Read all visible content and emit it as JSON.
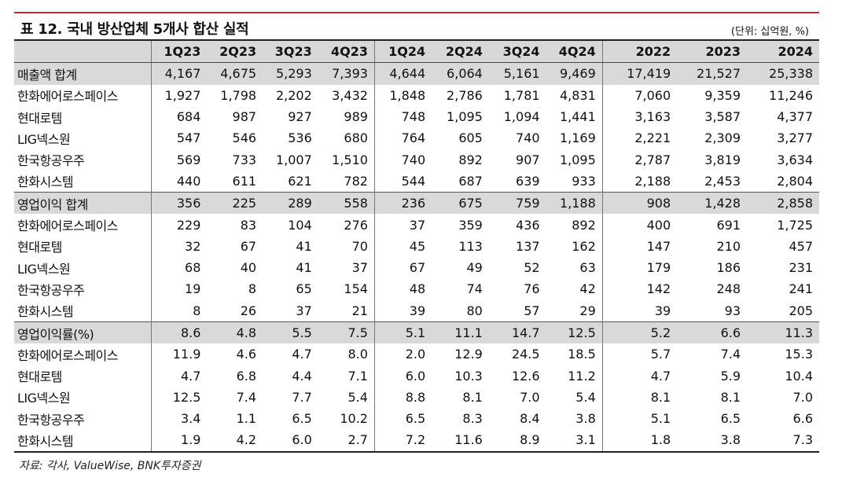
{
  "title": "표 12. 국내 방산업체 5개사 합산 실적",
  "unit": "(단위: 십억원, %)",
  "columns": [
    "1Q23",
    "2Q23",
    "3Q23",
    "4Q23",
    "1Q24",
    "2Q24",
    "3Q24",
    "4Q24",
    "2022",
    "2023",
    "2024"
  ],
  "rows": [
    {
      "name": "매출액 합계",
      "values": [
        "4,167",
        "4,675",
        "5,293",
        "7,393",
        "4,644",
        "6,064",
        "5,161",
        "9,469",
        "17,419",
        "21,527",
        "25,338"
      ],
      "total": true
    },
    {
      "name": "한화에어로스페이스",
      "values": [
        "1,927",
        "1,798",
        "2,202",
        "3,432",
        "1,848",
        "2,786",
        "1,781",
        "4,831",
        "7,060",
        "9,359",
        "11,246"
      ]
    },
    {
      "name": "현대로템",
      "values": [
        "684",
        "987",
        "927",
        "989",
        "748",
        "1,095",
        "1,094",
        "1,441",
        "3,163",
        "3,587",
        "4,377"
      ]
    },
    {
      "name": "LIG넥스원",
      "values": [
        "547",
        "546",
        "536",
        "680",
        "764",
        "605",
        "740",
        "1,169",
        "2,221",
        "2,309",
        "3,277"
      ]
    },
    {
      "name": "한국항공우주",
      "values": [
        "569",
        "733",
        "1,007",
        "1,510",
        "740",
        "892",
        "907",
        "1,095",
        "2,787",
        "3,819",
        "3,634"
      ]
    },
    {
      "name": "한화시스템",
      "values": [
        "440",
        "611",
        "621",
        "782",
        "544",
        "687",
        "639",
        "933",
        "2,188",
        "2,453",
        "2,804"
      ]
    },
    {
      "name": "영업이익 합계",
      "values": [
        "356",
        "225",
        "289",
        "558",
        "236",
        "675",
        "759",
        "1,188",
        "908",
        "1,428",
        "2,858"
      ],
      "total": true
    },
    {
      "name": "한화에어로스페이스",
      "values": [
        "229",
        "83",
        "104",
        "276",
        "37",
        "359",
        "436",
        "892",
        "400",
        "691",
        "1,725"
      ]
    },
    {
      "name": "현대로템",
      "values": [
        "32",
        "67",
        "41",
        "70",
        "45",
        "113",
        "137",
        "162",
        "147",
        "210",
        "457"
      ]
    },
    {
      "name": "LIG넥스원",
      "values": [
        "68",
        "40",
        "41",
        "37",
        "67",
        "49",
        "52",
        "63",
        "179",
        "186",
        "231"
      ]
    },
    {
      "name": "한국항공우주",
      "values": [
        "19",
        "8",
        "65",
        "154",
        "48",
        "74",
        "76",
        "42",
        "142",
        "248",
        "241"
      ]
    },
    {
      "name": "한화시스템",
      "values": [
        "8",
        "26",
        "37",
        "21",
        "39",
        "80",
        "57",
        "29",
        "39",
        "93",
        "205"
      ]
    },
    {
      "name": "영업이익률(%)",
      "values": [
        "8.6",
        "4.8",
        "5.5",
        "7.5",
        "5.1",
        "11.1",
        "14.7",
        "12.5",
        "5.2",
        "6.6",
        "11.3"
      ],
      "total": true
    },
    {
      "name": "한화에어로스페이스",
      "values": [
        "11.9",
        "4.6",
        "4.7",
        "8.0",
        "2.0",
        "12.9",
        "24.5",
        "18.5",
        "5.7",
        "7.4",
        "15.3"
      ]
    },
    {
      "name": "현대로템",
      "values": [
        "4.7",
        "6.8",
        "4.4",
        "7.1",
        "6.0",
        "10.3",
        "12.6",
        "11.2",
        "4.7",
        "5.9",
        "10.4"
      ]
    },
    {
      "name": "LIG넥스원",
      "values": [
        "12.5",
        "7.4",
        "7.7",
        "5.4",
        "8.8",
        "8.1",
        "7.0",
        "5.4",
        "8.1",
        "8.1",
        "7.0"
      ]
    },
    {
      "name": "한국항공우주",
      "values": [
        "3.4",
        "1.1",
        "6.5",
        "10.2",
        "6.5",
        "8.3",
        "8.4",
        "3.8",
        "5.1",
        "6.5",
        "6.6"
      ]
    },
    {
      "name": "한화시스템",
      "values": [
        "1.9",
        "4.2",
        "6.0",
        "2.7",
        "7.2",
        "11.6",
        "8.9",
        "3.1",
        "1.8",
        "3.8",
        "7.3"
      ]
    }
  ],
  "source": "자료: 각사, ValueWise, BNK투자증권"
}
